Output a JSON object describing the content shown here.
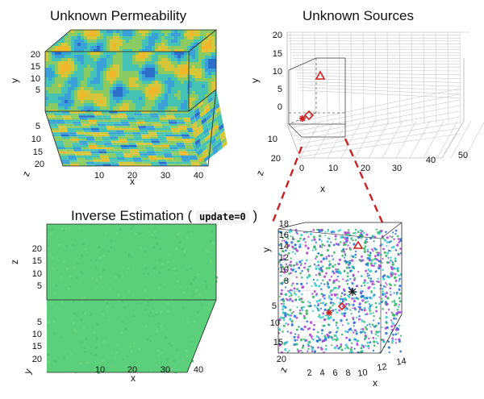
{
  "titles": {
    "permeability": "Unknown Permeability",
    "sources": "Unknown Sources",
    "inverse_prefix": "Inverse Estimation (",
    "inverse_code": "update=0",
    "inverse_suffix": ")"
  },
  "chart_data": [
    {
      "type": "heatmap",
      "title": "Unknown Permeability",
      "xlabel": "x",
      "ylabel": "y",
      "zlabel": "z",
      "x_ticks": [
        "10",
        "20",
        "30",
        "40"
      ],
      "y_ticks": [
        "5",
        "10",
        "15",
        "20"
      ],
      "z_ticks": [
        "5",
        "10",
        "15",
        "20"
      ],
      "palette": [
        "#2b6fc9",
        "#3aa0d8",
        "#46c3b3",
        "#8acb63",
        "#d7c63a",
        "#f1b72c"
      ]
    },
    {
      "type": "scatter",
      "title": "Unknown Sources",
      "xlabel": "x",
      "ylabel": "y",
      "zlabel": "z",
      "x_ticks": [
        "0",
        "10",
        "20",
        "30",
        "40",
        "50"
      ],
      "y_ticks": [
        "0",
        "5",
        "10",
        "15",
        "20"
      ],
      "z_ticks": [
        "10",
        "20"
      ],
      "markers": [
        "triangle",
        "diamond",
        "asterisk"
      ],
      "marker_color": "#cc1f1f"
    },
    {
      "type": "heatmap",
      "title": "Inverse Estimation (update=0)",
      "xlabel": "x",
      "ylabel": "y",
      "zlabel": "z",
      "x_ticks": [
        "10",
        "20",
        "30",
        "40"
      ],
      "y_ticks": [
        "5",
        "10",
        "15",
        "20"
      ],
      "z_ticks": [
        "5",
        "10",
        "15",
        "20"
      ],
      "fill_color": "#5ccf7a"
    },
    {
      "type": "scatter",
      "xlabel": "x",
      "ylabel": "y",
      "zlabel": "z",
      "x_ticks": [
        "2",
        "4",
        "6",
        "8",
        "10",
        "12",
        "14"
      ],
      "y_ticks": [
        "8",
        "10",
        "12",
        "14",
        "16",
        "18"
      ],
      "z_ticks": [
        "5",
        "10",
        "15",
        "20"
      ],
      "particle_colors": [
        "#2fc9c9",
        "#2fb55a",
        "#b23bd6",
        "#1f6fd6"
      ],
      "marker_color": "#cc1f1f"
    }
  ]
}
